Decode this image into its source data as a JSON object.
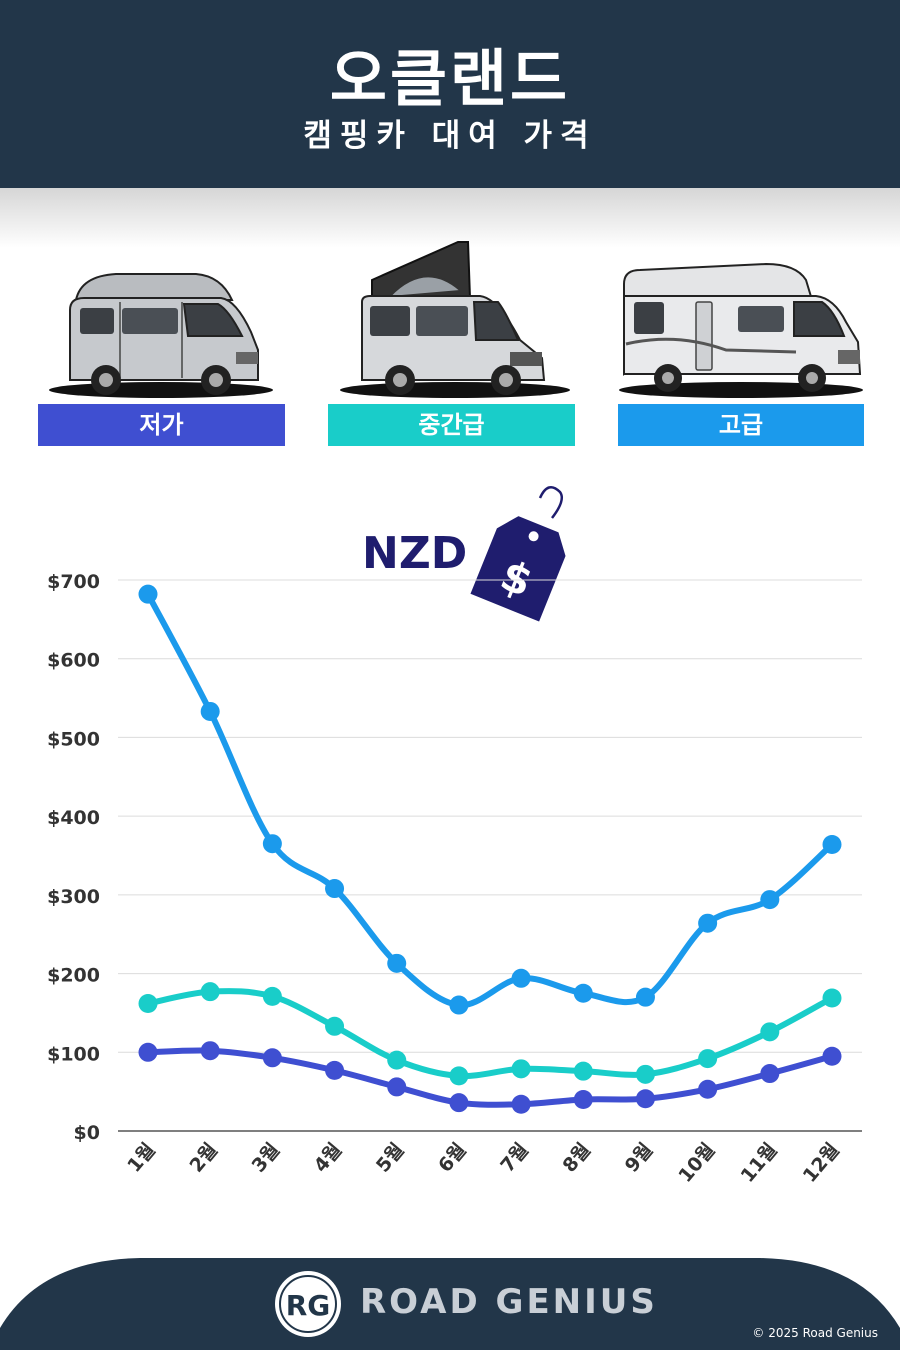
{
  "header": {
    "title": "오클랜드",
    "subtitle": "캠핑카 대여 가격"
  },
  "categories": [
    {
      "label": "저가",
      "color": "#3f4fd1",
      "icon": "campervan-highroof-icon"
    },
    {
      "label": "중간급",
      "color": "#19cdc9",
      "icon": "campervan-poptop-icon"
    },
    {
      "label": "고급",
      "color": "#1b9aec",
      "icon": "motorhome-icon"
    }
  ],
  "currency": {
    "label": "NZD",
    "tag_symbol": "$",
    "icon": "price-tag-icon"
  },
  "chart_data": {
    "type": "line",
    "categories": [
      "1월",
      "2월",
      "3월",
      "4월",
      "5월",
      "6월",
      "7월",
      "8월",
      "9월",
      "10월",
      "11월",
      "12월"
    ],
    "series": [
      {
        "name": "고급",
        "color": "#1b9aec",
        "values": [
          682,
          533,
          365,
          308,
          213,
          160,
          194,
          175,
          170,
          264,
          294,
          364
        ]
      },
      {
        "name": "중간급",
        "color": "#19cdc9",
        "values": [
          162,
          177,
          171,
          133,
          90,
          70,
          79,
          76,
          72,
          92,
          126,
          169
        ]
      },
      {
        "name": "저가",
        "color": "#3f4fd1",
        "values": [
          100,
          102,
          93,
          77,
          56,
          36,
          34,
          40,
          41,
          53,
          73,
          95
        ]
      }
    ],
    "yticks": [
      "$0",
      "$100",
      "$200",
      "$300",
      "$400",
      "$500",
      "$600",
      "$700"
    ],
    "ylim": [
      0,
      700
    ],
    "grid": true
  },
  "footer": {
    "logo_text": "RG",
    "brand": "ROAD GENIUS",
    "copyright": "© 2025 Road Genius"
  }
}
